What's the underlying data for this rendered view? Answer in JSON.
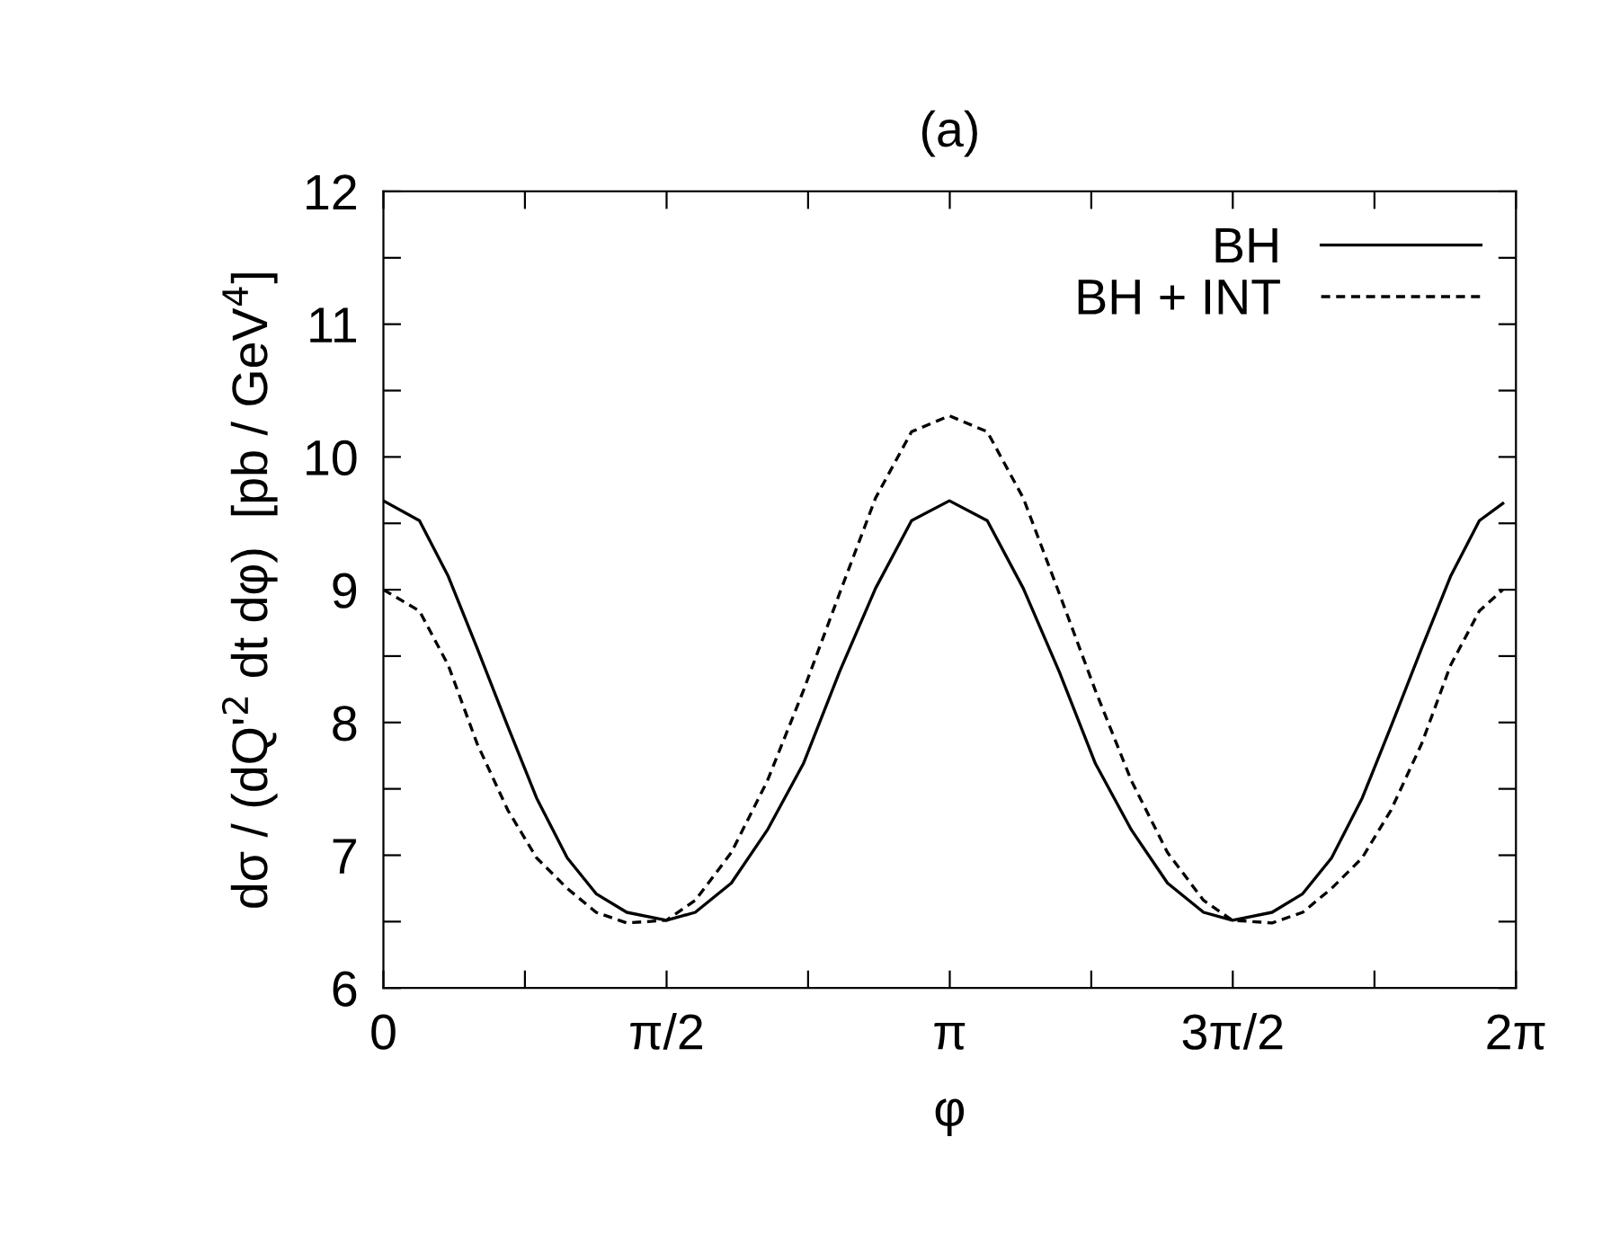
{
  "chart_data": {
    "type": "line",
    "title": "(a)",
    "xlabel": "φ",
    "ylabel": "dσ / (dQ'$^{2}$ dt dφ)  [pb / GeV$^{4}$]",
    "x": [
      0,
      0.2,
      0.36,
      0.52,
      0.69,
      0.85,
      1.02,
      1.18,
      1.35,
      1.57,
      1.73,
      1.93,
      2.13,
      2.33,
      2.53,
      2.73,
      2.93,
      3.14,
      3.35,
      3.55,
      3.75,
      3.95,
      4.15,
      4.35,
      4.55,
      4.71,
      4.93,
      5.1,
      5.26,
      5.43,
      5.59,
      5.76,
      5.92,
      6.08,
      6.21
    ],
    "series": [
      {
        "name": "BH",
        "color": "#000000",
        "line_style": "solid",
        "values": [
          9.67,
          9.52,
          9.1,
          8.56,
          7.97,
          7.43,
          6.98,
          6.71,
          6.57,
          6.51,
          6.57,
          6.79,
          7.19,
          7.69,
          8.38,
          9.01,
          9.52,
          9.67,
          9.52,
          9.01,
          8.38,
          7.69,
          7.19,
          6.79,
          6.57,
          6.51,
          6.57,
          6.71,
          6.98,
          7.43,
          7.97,
          8.56,
          9.1,
          9.52,
          9.65
        ]
      },
      {
        "name": "BH + INT",
        "color": "#000000",
        "line_style": "dashed",
        "values": [
          9.0,
          8.84,
          8.43,
          7.84,
          7.34,
          6.98,
          6.75,
          6.57,
          6.49,
          6.51,
          6.66,
          7.02,
          7.56,
          8.24,
          8.97,
          9.69,
          10.19,
          10.31,
          10.19,
          9.69,
          8.97,
          8.24,
          7.56,
          7.02,
          6.66,
          6.51,
          6.49,
          6.57,
          6.75,
          6.98,
          7.34,
          7.84,
          8.43,
          8.84,
          9.0
        ]
      }
    ],
    "xlim": [
      0,
      6.283
    ],
    "xticks": [
      0,
      {
        "value": 0.785,
        "label": null
      },
      {
        "value": 1.571,
        "label": "π/2"
      },
      {
        "value": 2.356,
        "label": null
      },
      {
        "value": 3.142,
        "label": "π"
      },
      {
        "value": 3.927,
        "label": null
      },
      {
        "value": 4.712,
        "label": "3π/2"
      },
      {
        "value": 5.498,
        "label": null
      },
      {
        "value": 6.283,
        "label": "2π"
      }
    ],
    "ylim": [
      6,
      12
    ],
    "yticks": [
      6,
      {
        "value": 6.5,
        "label": null
      },
      7,
      {
        "value": 7.5,
        "label": null
      },
      8,
      {
        "value": 8.5,
        "label": null
      },
      9,
      {
        "value": 9.5,
        "label": null
      },
      10,
      {
        "value": 10.5,
        "label": null
      },
      11,
      {
        "value": 11.5,
        "label": null
      },
      12
    ],
    "grid": false,
    "legend": "top right",
    "marker": "none"
  }
}
